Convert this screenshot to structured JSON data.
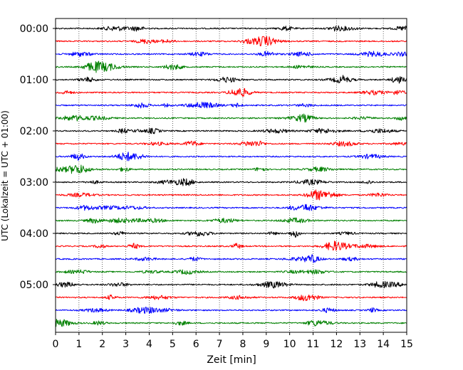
{
  "chart_data": {
    "type": "line",
    "title": "",
    "xlabel": "Zeit  [min]",
    "ylabel": "UTC (Lokalzeit = UTC + 01:00)",
    "xlim": [
      0,
      15
    ],
    "x_ticks": [
      "0",
      "1",
      "2",
      "3",
      "4",
      "5",
      "6",
      "7",
      "8",
      "9",
      "10",
      "11",
      "12",
      "13",
      "14",
      "15"
    ],
    "y_ticks": [
      "00:00",
      "01:00",
      "02:00",
      "03:00",
      "04:00",
      "05:00"
    ],
    "grid": "vertical dotted lines at each minute",
    "legend": "none",
    "trace_count": 24,
    "trace_interval_minutes": 15,
    "trace_colors": [
      "#000000",
      "#ff0000",
      "#0000ff",
      "#008000"
    ],
    "traces": [
      {
        "start": "00:00",
        "color": "#000000"
      },
      {
        "start": "00:15",
        "color": "#ff0000"
      },
      {
        "start": "00:30",
        "color": "#0000ff"
      },
      {
        "start": "00:45",
        "color": "#008000"
      },
      {
        "start": "01:00",
        "color": "#000000"
      },
      {
        "start": "01:15",
        "color": "#ff0000"
      },
      {
        "start": "01:30",
        "color": "#0000ff"
      },
      {
        "start": "01:45",
        "color": "#008000"
      },
      {
        "start": "02:00",
        "color": "#000000"
      },
      {
        "start": "02:15",
        "color": "#ff0000"
      },
      {
        "start": "02:30",
        "color": "#0000ff"
      },
      {
        "start": "02:45",
        "color": "#008000"
      },
      {
        "start": "03:00",
        "color": "#000000"
      },
      {
        "start": "03:15",
        "color": "#ff0000"
      },
      {
        "start": "03:30",
        "color": "#0000ff"
      },
      {
        "start": "03:45",
        "color": "#008000"
      },
      {
        "start": "04:00",
        "color": "#000000"
      },
      {
        "start": "04:15",
        "color": "#ff0000"
      },
      {
        "start": "04:30",
        "color": "#0000ff"
      },
      {
        "start": "04:45",
        "color": "#008000"
      },
      {
        "start": "05:00",
        "color": "#000000"
      },
      {
        "start": "05:15",
        "color": "#ff0000"
      },
      {
        "start": "05:30",
        "color": "#0000ff"
      },
      {
        "start": "05:45",
        "color": "#008000"
      }
    ]
  }
}
